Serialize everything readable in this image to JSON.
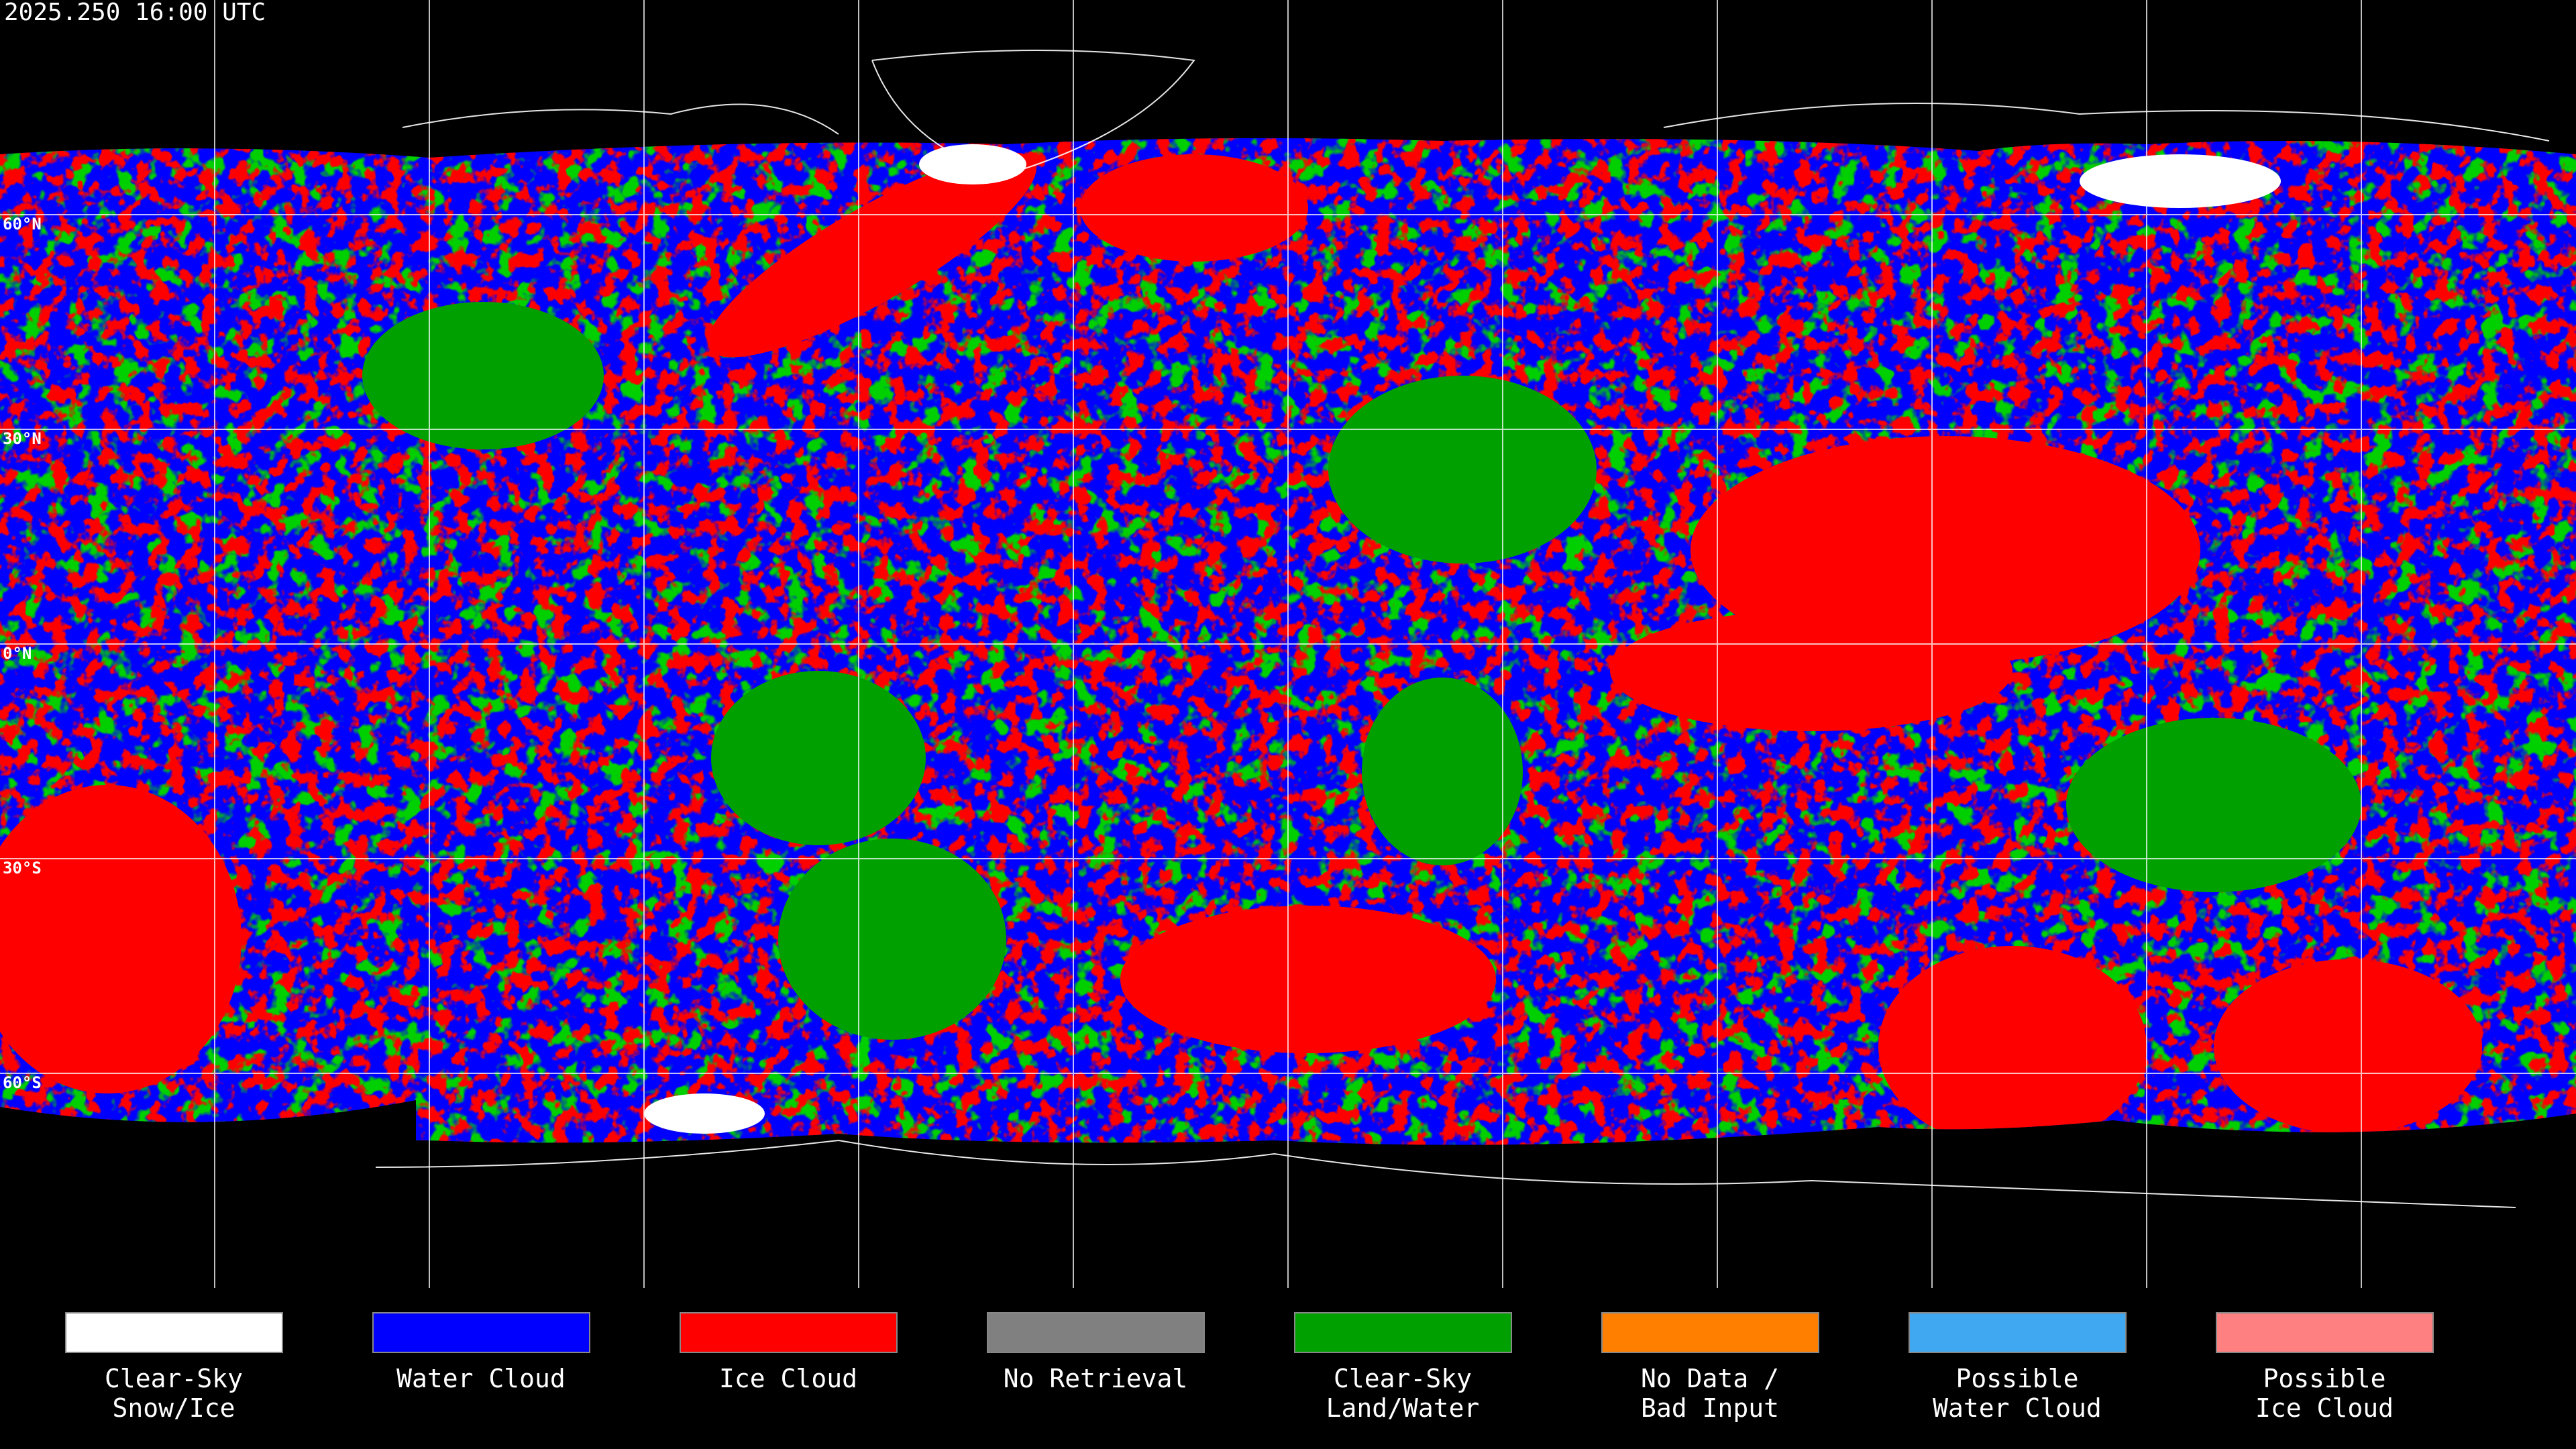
{
  "timestamp": "2025.250 16:00 UTC",
  "latitude_labels": [
    "60°N",
    "30°N",
    "0°N",
    "30°S",
    "60°S"
  ],
  "legend": [
    {
      "lines": [
        "Clear-Sky",
        "Snow/Ice"
      ],
      "color": "#ffffff"
    },
    {
      "lines": [
        "Water Cloud"
      ],
      "color": "#0000ff"
    },
    {
      "lines": [
        "Ice Cloud"
      ],
      "color": "#ff0000"
    },
    {
      "lines": [
        "No Retrieval"
      ],
      "color": "#808080"
    },
    {
      "lines": [
        "Clear-Sky",
        "Land/Water"
      ],
      "color": "#00a000"
    },
    {
      "lines": [
        "No Data /",
        "Bad Input"
      ],
      "color": "#ff8000"
    },
    {
      "lines": [
        "Possible",
        "Water Cloud"
      ],
      "color": "#40a8f0"
    },
    {
      "lines": [
        "Possible",
        "Ice Cloud"
      ],
      "color": "#ff8080"
    }
  ]
}
